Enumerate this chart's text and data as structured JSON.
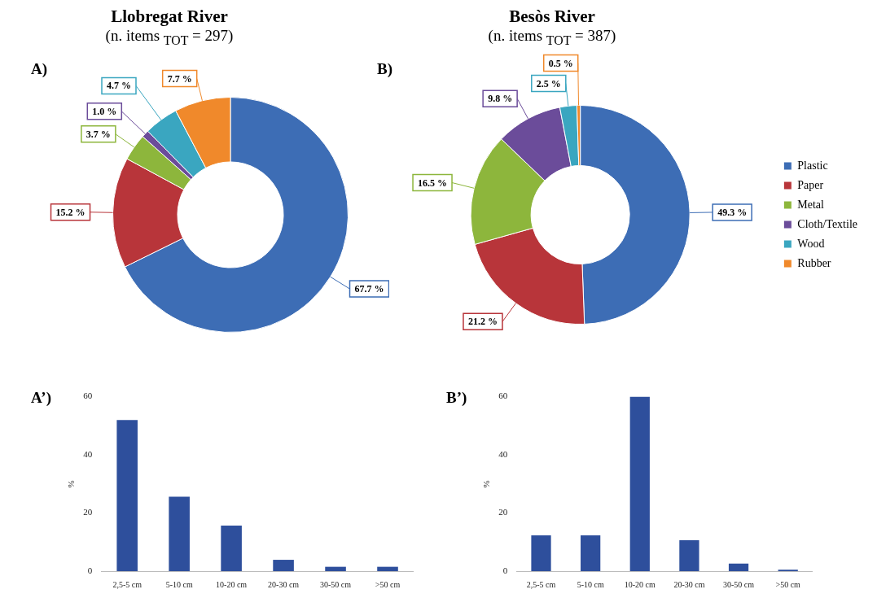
{
  "chart_data": [
    {
      "type": "donut",
      "title": "Llobregat River",
      "subtitle": "(n. items $_{TOT}$ = 297)",
      "annotations": [
        "A)"
      ],
      "categories": [
        null,
        null,
        null,
        null,
        null,
        null
      ],
      "values": [
        67.7,
        15.2,
        3.7,
        1.0,
        4.7,
        7.7
      ],
      "value_labels": [
        "67.7 %",
        "15.2 %",
        "3.7 %",
        "1.0 %",
        "4.7 %",
        "7.7 %"
      ],
      "colors": [
        "#3d6db5",
        "#b8353a",
        "#8db63c",
        "#6b4c9a",
        "#3aa6c0",
        "#f0892b"
      ],
      "legend": false
    },
    {
      "type": "donut",
      "title": "Besòs River",
      "subtitle": "(n. items $_{TOT}$ = 387)",
      "annotations": [
        "B)"
      ],
      "categories": [
        "Plastic",
        "Paper",
        "Metal",
        "Cloth/Textile",
        "Wood",
        "Rubber"
      ],
      "values": [
        49.3,
        21.2,
        16.5,
        9.8,
        2.5,
        0.5
      ],
      "value_labels": [
        "49.3 %",
        "21.2 %",
        "16.5 %",
        "9.8 %",
        "2.5 %",
        "0.5 %"
      ],
      "colors": [
        "#3d6db5",
        "#b8353a",
        "#8db63c",
        "#6b4c9a",
        "#3aa6c0",
        "#f0892b"
      ],
      "legend": "right"
    },
    {
      "type": "bar",
      "annotations": [
        "A’)"
      ],
      "ylabel": "%",
      "categories": [
        "2,5-5 cm",
        "5-10 cm",
        "10-20 cm",
        "20-30 cm",
        "30-50 cm",
        ">50 cm"
      ],
      "values": [
        52,
        25.6,
        15.7,
        3.9,
        1.5,
        1.5
      ],
      "color": "#2e4f9c",
      "ylim": [
        0,
        60
      ],
      "yticks": [
        0,
        20,
        40,
        60
      ],
      "grid": false
    },
    {
      "type": "bar",
      "annotations": [
        "B’)"
      ],
      "ylabel": "%",
      "categories": [
        "2,5-5 cm",
        "5-10 cm",
        "10-20 cm",
        "20-30 cm",
        "30-50 cm",
        ">50 cm"
      ],
      "values": [
        12.3,
        12.3,
        60,
        10.6,
        2.6,
        0.5
      ],
      "color": "#2e4f9c",
      "ylim": [
        0,
        60
      ],
      "yticks": [
        0,
        20,
        40,
        60
      ],
      "grid": false
    }
  ]
}
